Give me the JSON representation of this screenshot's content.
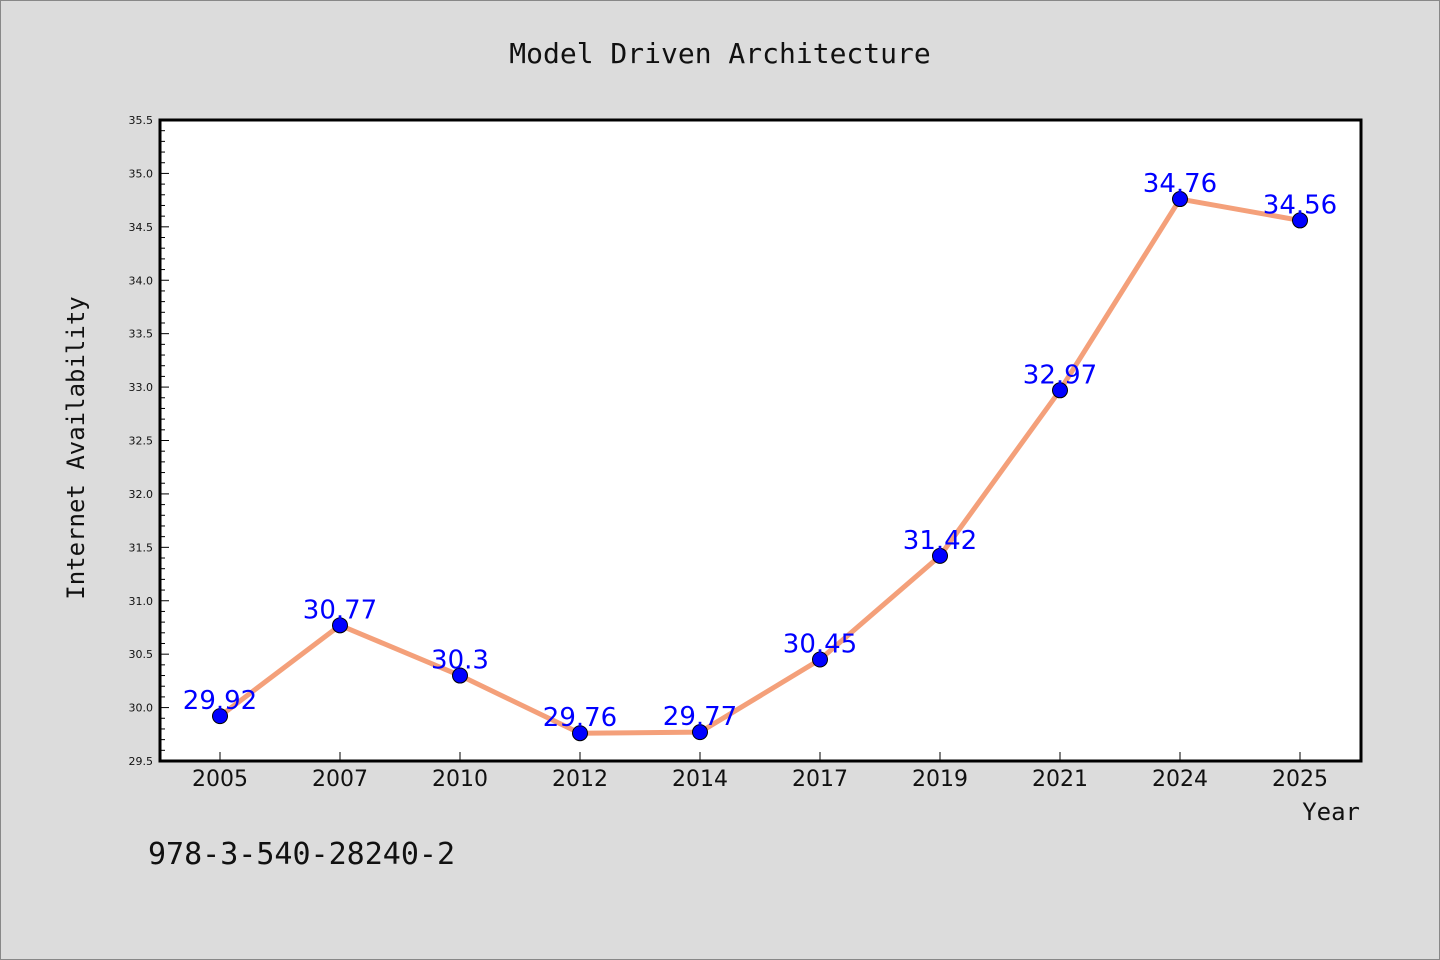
{
  "chart_data": {
    "type": "line",
    "title": "Model Driven Architecture",
    "xlabel": "Year",
    "ylabel": "Internet Availability",
    "categories": [
      "2005",
      "2007",
      "2010",
      "2012",
      "2014",
      "2017",
      "2019",
      "2021",
      "2024",
      "2025"
    ],
    "series": [
      {
        "values": [
          29.92,
          30.77,
          30.3,
          29.76,
          29.77,
          30.45,
          31.42,
          32.97,
          34.76,
          34.56
        ],
        "labels": [
          "29.92",
          "30.77",
          "30.3",
          "29.76",
          "29.77",
          "30.45",
          "31.42",
          "32.97",
          "34.76",
          "34.56"
        ],
        "line_color": "#f4a07a",
        "marker_color": "#0000ff"
      }
    ],
    "ylim": [
      29.5,
      35.5
    ],
    "yticks": [
      "29.5",
      "30.0",
      "30.5",
      "31.0",
      "31.5",
      "32.0",
      "32.5",
      "33.0",
      "33.5",
      "34.0",
      "34.5",
      "35.0",
      "35.5"
    ],
    "grid": false,
    "legend": "none"
  },
  "footer_text": "978-3-540-28240-2"
}
